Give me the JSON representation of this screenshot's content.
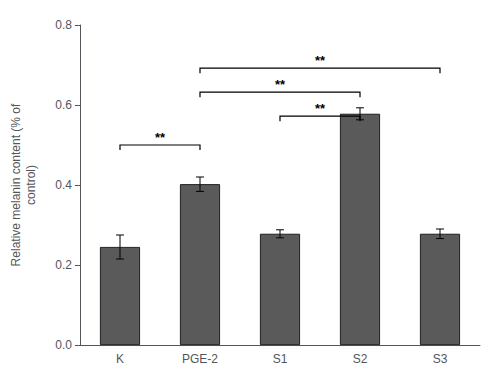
{
  "chart_data": {
    "type": "bar",
    "categories": [
      "K",
      "PGE-2",
      "S1",
      "S2",
      "S3"
    ],
    "values": [
      0.245,
      0.402,
      0.278,
      0.578,
      0.278
    ],
    "errors": [
      0.03,
      0.018,
      0.01,
      0.015,
      0.012
    ],
    "color": "#5a5a5a",
    "ylabel": "Relative melanin content (% of\ncontrol)",
    "ylim": [
      0,
      0.8
    ],
    "yticks": [
      {
        "value": 0,
        "label": "0.0"
      },
      0.2,
      0.4,
      0.6,
      0.8
    ],
    "grid": false,
    "brackets": [
      {
        "from": "K",
        "to": "PGE-2",
        "y": 0.5,
        "label": "**"
      },
      {
        "from": "S1",
        "to": "S2",
        "y": 0.572,
        "label": "**"
      },
      {
        "from": "PGE-2",
        "to": "S2",
        "y": 0.632,
        "label": "**"
      },
      {
        "from": "PGE-2",
        "to": "S3",
        "y": 0.692,
        "label": "**"
      }
    ]
  }
}
